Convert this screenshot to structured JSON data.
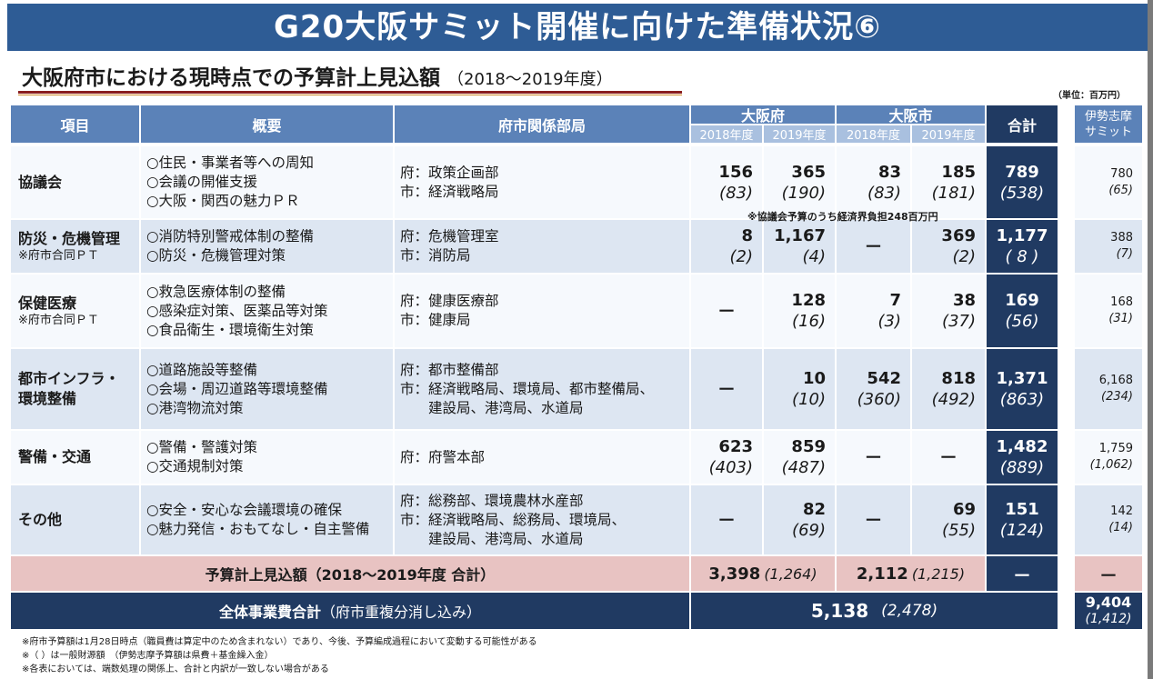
{
  "title": "G20大阪サミット開催に向けた準備状況⑥",
  "subtitle": "大阪府市における現時点での予算計上見込額",
  "subtitle_period": "（2018～2019年度）",
  "unit": "（単位：百万円）",
  "headers": {
    "item": "項目",
    "summary": "概要",
    "dept": "府市関係部局",
    "pref": "大阪府",
    "city": "大阪市",
    "fy2018": "2018年度",
    "fy2019": "2019年度",
    "total": "合計",
    "ise_line1": "伊勢志摩",
    "ise_line2": "サミット"
  },
  "rows": [
    {
      "item": "協議会",
      "note": "",
      "summary": [
        "○住民・事業者等への周知",
        "○会議の開催支援",
        "○大阪・関西の魅力ＰＲ"
      ],
      "dept": [
        "府：政策企画部",
        "市：経済戦略局"
      ],
      "p18": "156",
      "p18s": "(83)",
      "p19": "365",
      "p19s": "(190)",
      "c18": "83",
      "c18s": "(83)",
      "c19": "185",
      "c19s": "(181)",
      "total": "789",
      "totals": "(538)",
      "ise": "780",
      "ises": "(65)"
    },
    {
      "item": "防災・危機管理",
      "note": "※府市合同ＰＴ",
      "summary": [
        "○消防特別警戒体制の整備",
        "○防災・危機管理対策"
      ],
      "dept": [
        "府：危機管理室",
        "市：消防局"
      ],
      "p18": "8",
      "p18s": "(2)",
      "p19": "1,167",
      "p19s": "(4)",
      "c18": "－",
      "c18s": "",
      "c19": "369",
      "c19s": "(2)",
      "total": "1,177",
      "totals": "( 8 )",
      "ise": "388",
      "ises": "(7)"
    },
    {
      "item": "保健医療",
      "note": "※府市合同ＰＴ",
      "summary": [
        "○救急医療体制の整備",
        "○感染症対策、医薬品等対策",
        "○食品衛生・環境衛生対策"
      ],
      "dept": [
        "府：健康医療部",
        "市：健康局"
      ],
      "p18": "－",
      "p18s": "",
      "p19": "128",
      "p19s": "(16)",
      "c18": "7",
      "c18s": "(3)",
      "c19": "38",
      "c19s": "(37)",
      "total": "169",
      "totals": "(56)",
      "ise": "168",
      "ises": "(31)"
    },
    {
      "item": "都市インフラ・",
      "item2": "環境整備",
      "note": "",
      "summary": [
        "○道路施設等整備",
        "○会場・周辺道路等環境整備",
        "○港湾物流対策"
      ],
      "dept": [
        "府：都市整備部",
        "市：経済戦略局、環境局、都市整備局、",
        "　　建設局、港湾局、水道局"
      ],
      "p18": "－",
      "p18s": "",
      "p19": "10",
      "p19s": "(10)",
      "c18": "542",
      "c18s": "(360)",
      "c19": "818",
      "c19s": "(492)",
      "total": "1,371",
      "totals": "(863)",
      "ise": "6,168",
      "ises": "(234)"
    },
    {
      "item": "警備・交通",
      "note": "",
      "summary": [
        "○警備・警護対策",
        "○交通規制対策"
      ],
      "dept": [
        "府：府警本部"
      ],
      "p18": "623",
      "p18s": "(403)",
      "p19": "859",
      "p19s": "(487)",
      "c18": "－",
      "c18s": "",
      "c19": "－",
      "c19s": "",
      "total": "1,482",
      "totals": "(889)",
      "ise": "1,759",
      "ises": "(1,062)"
    },
    {
      "item": "その他",
      "note": "",
      "summary": [
        "○安全・安心な会議環境の確保",
        "○魅力発信・おもてなし・自主警備"
      ],
      "dept": [
        "府：総務部、環境農林水産部",
        "市：経済戦略局、総務局、環境局、",
        "　　建設局、港湾局、水道局"
      ],
      "p18": "－",
      "p18s": "",
      "p19": "82",
      "p19s": "(69)",
      "c18": "－",
      "c18s": "",
      "c19": "69",
      "c19s": "(55)",
      "total": "151",
      "totals": "(124)",
      "ise": "142",
      "ises": "(14)"
    }
  ],
  "keizai_note": "※協議会予算のうち経済界負担248百万円",
  "budget_row": {
    "label": "予算計上見込額（2018～2019年度 合計）",
    "pref": "3,398",
    "pref_s": "(1,264)",
    "city": "2,112",
    "city_s": "(1,215)",
    "total": "－",
    "ise": "－"
  },
  "overall_row": {
    "label_bold": "全体事業費合計",
    "label_rest": "（府市重複分消し込み）",
    "value": "5,138",
    "value_s": "(2,478)",
    "ise": "9,404",
    "ise_s": "(1,412)"
  },
  "footnotes": [
    "※府市予算額は1月28日時点（職員費は算定中のため含まれない）であり、今後、予算編成過程において変動する可能性がある",
    "※（ ）は一般財源額　（伊勢志摩予算額は県費＋基金繰入金）",
    "※各表においては、端数処理の関係上、合計と内訳が一致しない場合がある"
  ]
}
